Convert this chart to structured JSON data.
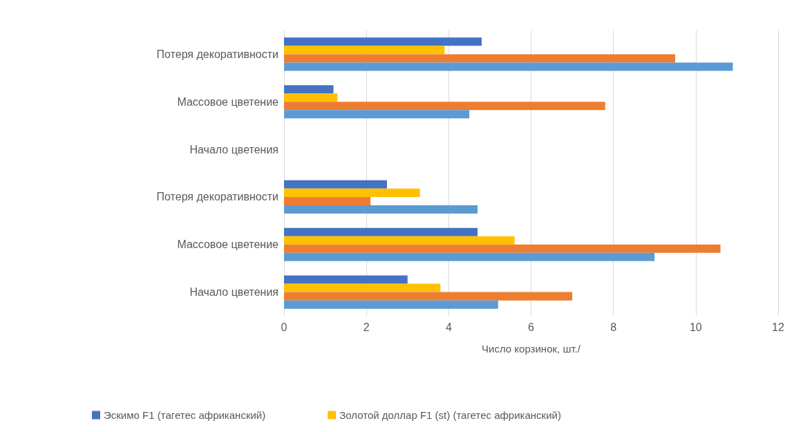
{
  "chart_data": {
    "type": "bar",
    "orientation": "horizontal",
    "xlabel": "Число корзинок, шт./",
    "categories": [
      "Потеря декоративности",
      "Массовое цветение",
      "Начало цветения",
      "Потеря декоративности",
      "Массовое цветение",
      "Начало цветения"
    ],
    "series": [
      {
        "name": "Эскимо F1 (тагетес африканский)",
        "color": "#4472c4",
        "values": [
          4.8,
          1.2,
          null,
          2.5,
          4.7,
          3.0
        ]
      },
      {
        "name": "Золотой доллар F1 (st) (тагетес африканский)",
        "color": "#ffc000",
        "values": [
          3.9,
          1.3,
          null,
          3.3,
          5.6,
          3.8
        ]
      },
      {
        "color": "#ed7d31",
        "values": [
          9.5,
          7.8,
          null,
          2.1,
          10.6,
          7.0
        ]
      },
      {
        "color": "#5b9bd5",
        "values": [
          10.9,
          4.5,
          null,
          4.7,
          9.0,
          5.2
        ]
      }
    ],
    "xlim": [
      0,
      12
    ],
    "xticks": [
      0,
      2,
      4,
      6,
      8,
      10,
      12
    ],
    "grid": "x",
    "legend": "bottom"
  }
}
